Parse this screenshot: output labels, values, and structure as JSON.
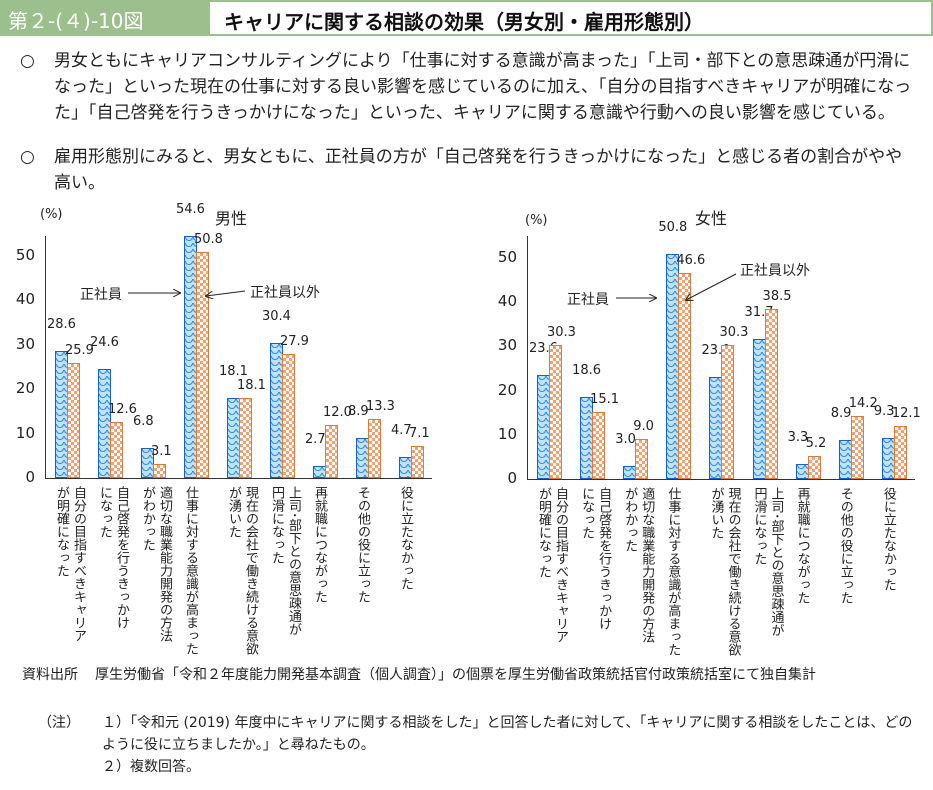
{
  "header": {
    "number": "第２-(４)-10図",
    "title": "キャリアに関する相談の効果（男女別・雇用形態別）"
  },
  "bullets": [
    {
      "mark": "○",
      "text": "男女ともにキャリアコンサルティングにより「仕事に対する意識が高まった」「上司・部下との意思疎通が円滑になった」といった現在の仕事に対する良い影響を感じているのに加え、「自分の目指すべきキャリアが明確になった」「自己啓発を行うきっかけになった」といった、キャリアに関する意識や行動への良い影響を感じている。"
    },
    {
      "mark": "○",
      "text": "雇用形態別にみると、男女ともに、正社員の方が「自己啓発を行うきっかけになった」と感じる者の割合がやや高い。"
    }
  ],
  "chart_data": [
    {
      "type": "bar",
      "title": "男性",
      "ylabel": "(%)",
      "ylim": [
        0,
        50
      ],
      "yticks": [
        "0",
        "10",
        "20",
        "30",
        "40",
        "50"
      ],
      "categories": [
        "自分の目指すべきキャリア\nが明確になった",
        "自己啓発を行うきっかけ\nになった",
        "適切な職業能力開発の方法\nがわかった",
        "仕事に対する意識が高まった",
        "現在の会社で働き続ける意欲\nが湧いた",
        "上司･部下との意思疎通が\n円滑になった",
        "再就職につながった",
        "その他の役に立った",
        "役に立たなかった"
      ],
      "series": [
        {
          "name": "正社員",
          "values": [
            28.6,
            24.6,
            6.8,
            54.6,
            18.1,
            30.4,
            2.7,
            8.9,
            4.7
          ]
        },
        {
          "name": "正社員以外",
          "values": [
            25.9,
            12.6,
            3.1,
            50.8,
            18.1,
            27.9,
            12.0,
            13.3,
            7.1
          ]
        }
      ]
    },
    {
      "type": "bar",
      "title": "女性",
      "ylabel": "(%)",
      "ylim": [
        0,
        50
      ],
      "yticks": [
        "0",
        "10",
        "20",
        "30",
        "40",
        "50"
      ],
      "categories": [
        "自分の目指すべきキャリア\nが明確になった",
        "自己啓発を行うきっかけ\nになった",
        "適切な職業能力開発の方法\nがわかった",
        "仕事に対する意識が高まった",
        "現在の会社で働き続ける意欲\nが湧いた",
        "上司･部下との意思疎通が\n円滑になった",
        "再就職につながった",
        "その他の役に立った",
        "役に立たなかった"
      ],
      "series": [
        {
          "name": "正社員",
          "values": [
            23.6,
            18.6,
            3.0,
            50.8,
            23.0,
            31.7,
            3.3,
            8.9,
            9.3
          ]
        },
        {
          "name": "正社員以外",
          "values": [
            30.3,
            15.1,
            9.0,
            46.6,
            30.3,
            38.5,
            5.2,
            14.2,
            12.1
          ]
        }
      ]
    }
  ],
  "footnotes": {
    "source_label": "資料出所",
    "source": "厚生労働省「令和２年度能力開発基本調査（個人調査）」の個票を厚生労働省政策統括官付政策統括室にて独自集計",
    "note_label": "（注）",
    "note1": "１）「令和元 (2019) 年度中にキャリアに関する相談をした」と回答した者に対して、「キャリアに関する相談をしたことは、どのように役に立ちましたか。」と尋ねたもの。",
    "note2": "２）複数回答。"
  }
}
